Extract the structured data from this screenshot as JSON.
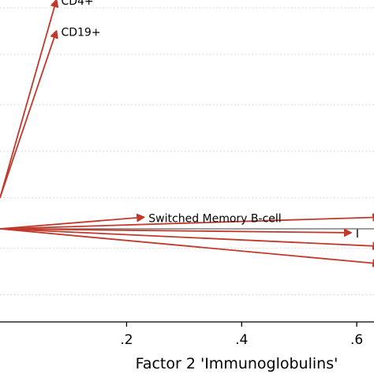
{
  "chart_data": {
    "type": "biplot",
    "xlabel": "Factor 2 'Immunoglobulins'",
    "ylabel": "",
    "grid": true,
    "xlim": [
      -0.02,
      0.63
    ],
    "ylim": [
      -0.56,
      0.27
    ],
    "x_ticks": [
      {
        "value": 0.2,
        "label": ".2"
      },
      {
        "value": 0.4,
        "label": ".4"
      },
      {
        "value": 0.6,
        "label": ".6"
      }
    ],
    "y_grid_values": [
      0.25,
      0.13,
      0.0,
      -0.12,
      -0.24,
      -0.37,
      -0.49
    ],
    "arrow_color": "#c0392b",
    "reference_line_color": "#7f7f7f",
    "vectors": [
      {
        "label": "CD4+",
        "x0": -0.02,
        "y0": -0.24,
        "x": 0.078,
        "y": 0.27
      },
      {
        "label": "CD19+",
        "x0": -0.02,
        "y0": -0.24,
        "x": 0.078,
        "y": 0.19
      },
      {
        "label": "Switched Memory B-cell",
        "x0": -0.02,
        "y0": -0.32,
        "x": 0.23,
        "y": -0.29
      },
      {
        "label": "",
        "x0": -0.02,
        "y0": -0.32,
        "x": 0.64,
        "y": -0.29
      },
      {
        "label": "I",
        "x0": -0.02,
        "y0": -0.32,
        "x": 0.59,
        "y": -0.33
      },
      {
        "label": "",
        "x0": -0.02,
        "y0": -0.32,
        "x": 0.64,
        "y": -0.365
      },
      {
        "label": "",
        "x0": -0.02,
        "y0": -0.32,
        "x": 0.64,
        "y": -0.41
      }
    ]
  }
}
